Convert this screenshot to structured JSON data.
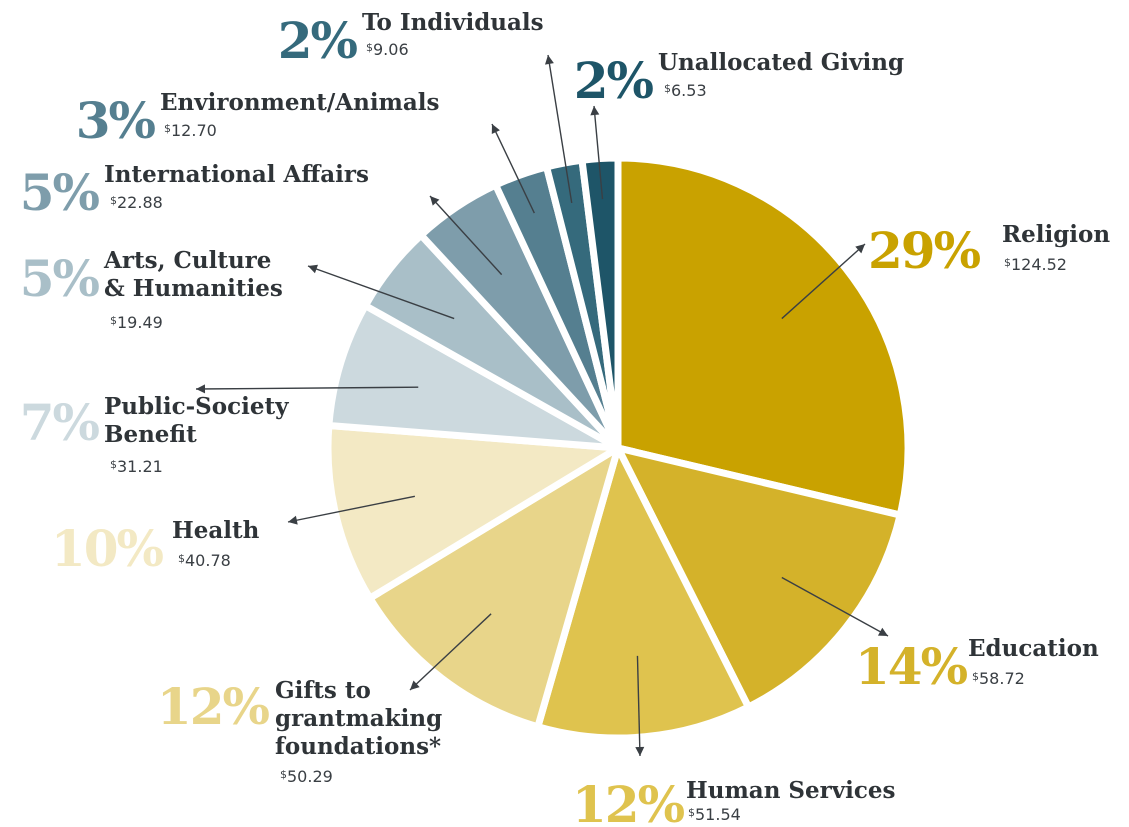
{
  "chart_data": {
    "type": "pie",
    "title": "",
    "currency_symbol": "$",
    "slices": [
      {
        "label_lines": [
          "Religion"
        ],
        "percent_label": "29%",
        "percent": 29,
        "amount": "124.52",
        "color": "#c9a200"
      },
      {
        "label_lines": [
          "Education"
        ],
        "percent_label": "14%",
        "percent": 14,
        "amount": "58.72",
        "color": "#d4b22a"
      },
      {
        "label_lines": [
          "Human Services"
        ],
        "percent_label": "12%",
        "percent": 12,
        "amount": "51.54",
        "color": "#dfc34e"
      },
      {
        "label_lines": [
          "Gifts to",
          "grantmaking",
          "foundations*"
        ],
        "percent_label": "12%",
        "percent": 12,
        "amount": "50.29",
        "color": "#e8d58a"
      },
      {
        "label_lines": [
          "Health"
        ],
        "percent_label": "10%",
        "percent": 10,
        "amount": "40.78",
        "color": "#f3e9c4"
      },
      {
        "label_lines": [
          "Public-Society",
          "Benefit"
        ],
        "percent_label": "7%",
        "percent": 7,
        "amount": "31.21",
        "color": "#ccd9de"
      },
      {
        "label_lines": [
          "Arts, Culture",
          "& Humanities"
        ],
        "percent_label": "5%",
        "percent": 5,
        "amount": "19.49",
        "color": "#a9bfc8"
      },
      {
        "label_lines": [
          "International Affairs"
        ],
        "percent_label": "5%",
        "percent": 5,
        "amount": "22.88",
        "color": "#7e9dab"
      },
      {
        "label_lines": [
          "Environment/Animals"
        ],
        "percent_label": "3%",
        "percent": 3,
        "amount": "12.70",
        "color": "#557f90"
      },
      {
        "label_lines": [
          "To Individuals"
        ],
        "percent_label": "2%",
        "percent": 2,
        "amount": "9.06",
        "color": "#356a7c"
      },
      {
        "label_lines": [
          "Unallocated Giving"
        ],
        "percent_label": "2%",
        "percent": 2,
        "amount": "6.53",
        "color": "#1e5568"
      }
    ]
  }
}
